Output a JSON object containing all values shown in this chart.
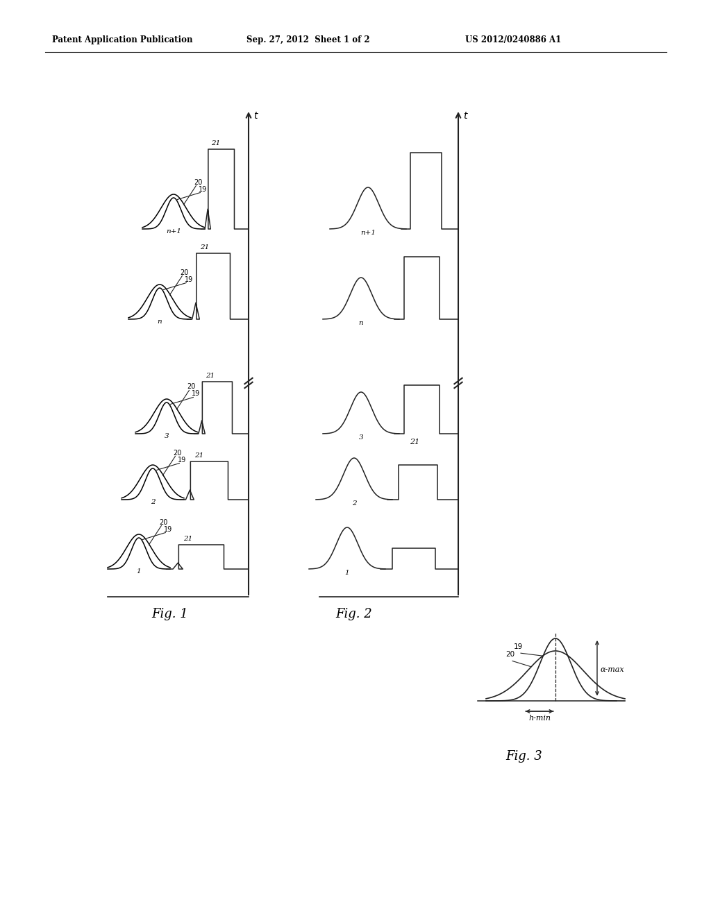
{
  "header_left": "Patent Application Publication",
  "header_mid": "Sep. 27, 2012  Sheet 1 of 2",
  "header_right": "US 2012/0240886 A1",
  "fig1_label": "Fig. 1",
  "fig2_label": "Fig. 2",
  "fig3_label": "Fig. 3",
  "bg_color": "#ffffff",
  "line_color": "#222222"
}
